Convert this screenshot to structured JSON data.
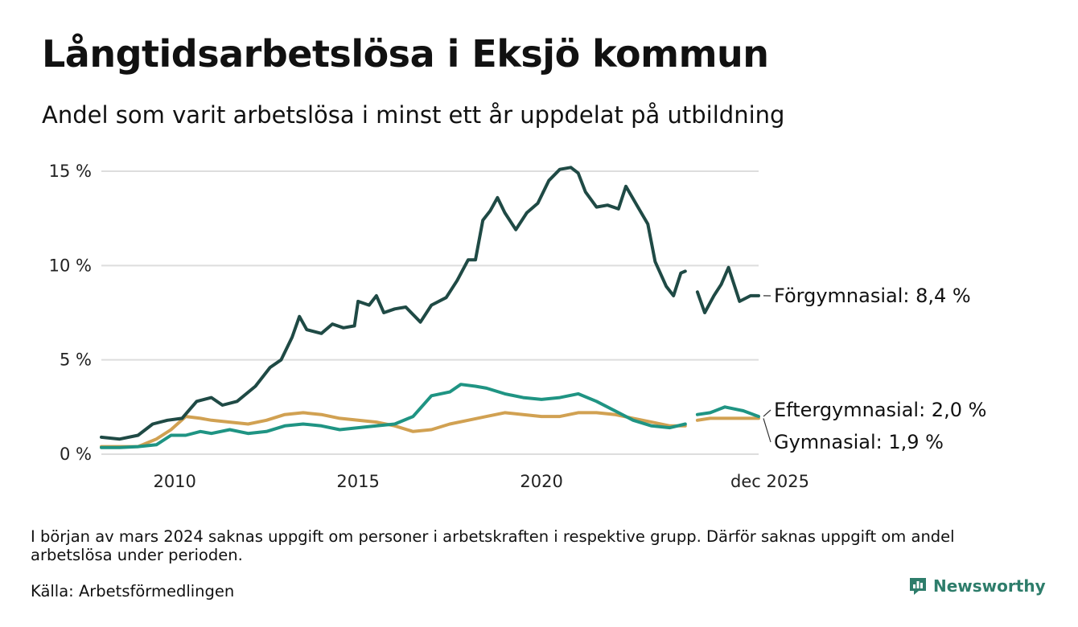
{
  "title": "Långtidsarbetslösa i Eksjö kommun",
  "subtitle": "Andel som varit arbetslösa i minst ett år uppdelat på utbildning",
  "note": "I början av mars 2024 saknas uppgift om personer i arbetskraften i respektive grupp. Därför saknas uppgift om andel arbetslösa under perioden.",
  "source": "Källa: Arbetsförmedlingen",
  "brand": {
    "name": "Newsworthy",
    "icon": "newsworthy-logo-icon",
    "color": "#2e7d6b"
  },
  "chart_data": {
    "type": "line",
    "title": "Långtidsarbetslösa i Eksjö kommun",
    "ylabel": "",
    "xlabel": "",
    "ylim": [
      0,
      15
    ],
    "xlim": [
      2008.0,
      2025.92
    ],
    "grid": true,
    "y_ticks": [
      {
        "value": 0,
        "label": "0 %"
      },
      {
        "value": 5,
        "label": "5 %"
      },
      {
        "value": 10,
        "label": "10 %"
      },
      {
        "value": 15,
        "label": "15 %"
      }
    ],
    "x_ticks": [
      {
        "value": 2010,
        "label": "2010"
      },
      {
        "value": 2015,
        "label": "2015"
      },
      {
        "value": 2020,
        "label": "2020"
      },
      {
        "value": 2025.92,
        "label": "dec 2025"
      }
    ],
    "gap": [
      2023.92,
      2024.25
    ],
    "series": [
      {
        "name": "Förgymnasial",
        "end_label": "Förgymnasial: 8,4 %",
        "color": "#1f4a45",
        "points": [
          [
            2008.0,
            0.9
          ],
          [
            2008.5,
            0.8
          ],
          [
            2009.0,
            1.0
          ],
          [
            2009.4,
            1.6
          ],
          [
            2009.8,
            1.8
          ],
          [
            2010.2,
            1.9
          ],
          [
            2010.6,
            2.8
          ],
          [
            2011.0,
            3.0
          ],
          [
            2011.3,
            2.6
          ],
          [
            2011.7,
            2.8
          ],
          [
            2012.2,
            3.6
          ],
          [
            2012.6,
            4.6
          ],
          [
            2012.9,
            5.0
          ],
          [
            2013.2,
            6.2
          ],
          [
            2013.4,
            7.3
          ],
          [
            2013.6,
            6.6
          ],
          [
            2014.0,
            6.4
          ],
          [
            2014.3,
            6.9
          ],
          [
            2014.6,
            6.7
          ],
          [
            2014.9,
            6.8
          ],
          [
            2015.0,
            8.1
          ],
          [
            2015.3,
            7.9
          ],
          [
            2015.5,
            8.4
          ],
          [
            2015.7,
            7.5
          ],
          [
            2016.0,
            7.7
          ],
          [
            2016.3,
            7.8
          ],
          [
            2016.7,
            7.0
          ],
          [
            2017.0,
            7.9
          ],
          [
            2017.4,
            8.3
          ],
          [
            2017.7,
            9.2
          ],
          [
            2018.0,
            10.3
          ],
          [
            2018.2,
            10.3
          ],
          [
            2018.4,
            12.4
          ],
          [
            2018.6,
            12.9
          ],
          [
            2018.8,
            13.6
          ],
          [
            2019.0,
            12.8
          ],
          [
            2019.3,
            11.9
          ],
          [
            2019.6,
            12.8
          ],
          [
            2019.9,
            13.3
          ],
          [
            2020.2,
            14.5
          ],
          [
            2020.5,
            15.1
          ],
          [
            2020.8,
            15.2
          ],
          [
            2021.0,
            14.9
          ],
          [
            2021.2,
            13.9
          ],
          [
            2021.5,
            13.1
          ],
          [
            2021.8,
            13.2
          ],
          [
            2022.1,
            13.0
          ],
          [
            2022.3,
            14.2
          ],
          [
            2022.6,
            13.2
          ],
          [
            2022.9,
            12.2
          ],
          [
            2023.1,
            10.2
          ],
          [
            2023.4,
            8.9
          ],
          [
            2023.6,
            8.4
          ],
          [
            2023.8,
            9.6
          ],
          [
            2023.92,
            9.7
          ],
          [
            2024.25,
            8.6
          ],
          [
            2024.45,
            7.5
          ],
          [
            2024.7,
            8.4
          ],
          [
            2024.9,
            9.0
          ],
          [
            2025.1,
            9.9
          ],
          [
            2025.4,
            8.1
          ],
          [
            2025.7,
            8.4
          ],
          [
            2025.92,
            8.4
          ]
        ]
      },
      {
        "name": "Eftergymnasial",
        "end_label": "Eftergymnasial: 2,0 %",
        "color": "#1f9483",
        "points": [
          [
            2008.0,
            0.35
          ],
          [
            2008.5,
            0.35
          ],
          [
            2009.0,
            0.4
          ],
          [
            2009.5,
            0.5
          ],
          [
            2009.9,
            1.0
          ],
          [
            2010.3,
            1.0
          ],
          [
            2010.7,
            1.2
          ],
          [
            2011.0,
            1.1
          ],
          [
            2011.5,
            1.3
          ],
          [
            2012.0,
            1.1
          ],
          [
            2012.5,
            1.2
          ],
          [
            2013.0,
            1.5
          ],
          [
            2013.5,
            1.6
          ],
          [
            2014.0,
            1.5
          ],
          [
            2014.5,
            1.3
          ],
          [
            2015.0,
            1.4
          ],
          [
            2015.5,
            1.5
          ],
          [
            2016.0,
            1.6
          ],
          [
            2016.5,
            2.0
          ],
          [
            2017.0,
            3.1
          ],
          [
            2017.5,
            3.3
          ],
          [
            2017.8,
            3.7
          ],
          [
            2018.2,
            3.6
          ],
          [
            2018.5,
            3.5
          ],
          [
            2019.0,
            3.2
          ],
          [
            2019.5,
            3.0
          ],
          [
            2020.0,
            2.9
          ],
          [
            2020.5,
            3.0
          ],
          [
            2021.0,
            3.2
          ],
          [
            2021.5,
            2.8
          ],
          [
            2022.0,
            2.3
          ],
          [
            2022.5,
            1.8
          ],
          [
            2023.0,
            1.5
          ],
          [
            2023.5,
            1.4
          ],
          [
            2023.92,
            1.6
          ],
          [
            2024.25,
            2.1
          ],
          [
            2024.6,
            2.2
          ],
          [
            2025.0,
            2.5
          ],
          [
            2025.5,
            2.3
          ],
          [
            2025.92,
            2.0
          ]
        ]
      },
      {
        "name": "Gymnasial",
        "end_label": "Gymnasial: 1,9 %",
        "color": "#d1a152",
        "points": [
          [
            2008.0,
            0.4
          ],
          [
            2008.5,
            0.4
          ],
          [
            2009.0,
            0.4
          ],
          [
            2009.5,
            0.8
          ],
          [
            2009.9,
            1.3
          ],
          [
            2010.3,
            2.0
          ],
          [
            2010.7,
            1.9
          ],
          [
            2011.0,
            1.8
          ],
          [
            2011.5,
            1.7
          ],
          [
            2012.0,
            1.6
          ],
          [
            2012.5,
            1.8
          ],
          [
            2013.0,
            2.1
          ],
          [
            2013.5,
            2.2
          ],
          [
            2014.0,
            2.1
          ],
          [
            2014.5,
            1.9
          ],
          [
            2015.0,
            1.8
          ],
          [
            2015.5,
            1.7
          ],
          [
            2016.0,
            1.5
          ],
          [
            2016.5,
            1.2
          ],
          [
            2017.0,
            1.3
          ],
          [
            2017.5,
            1.6
          ],
          [
            2018.0,
            1.8
          ],
          [
            2018.5,
            2.0
          ],
          [
            2019.0,
            2.2
          ],
          [
            2019.5,
            2.1
          ],
          [
            2020.0,
            2.0
          ],
          [
            2020.5,
            2.0
          ],
          [
            2021.0,
            2.2
          ],
          [
            2021.5,
            2.2
          ],
          [
            2022.0,
            2.1
          ],
          [
            2022.5,
            1.9
          ],
          [
            2023.0,
            1.7
          ],
          [
            2023.5,
            1.5
          ],
          [
            2023.92,
            1.5
          ],
          [
            2024.25,
            1.8
          ],
          [
            2024.6,
            1.9
          ],
          [
            2025.0,
            1.9
          ],
          [
            2025.5,
            1.9
          ],
          [
            2025.92,
            1.9
          ]
        ]
      }
    ]
  }
}
